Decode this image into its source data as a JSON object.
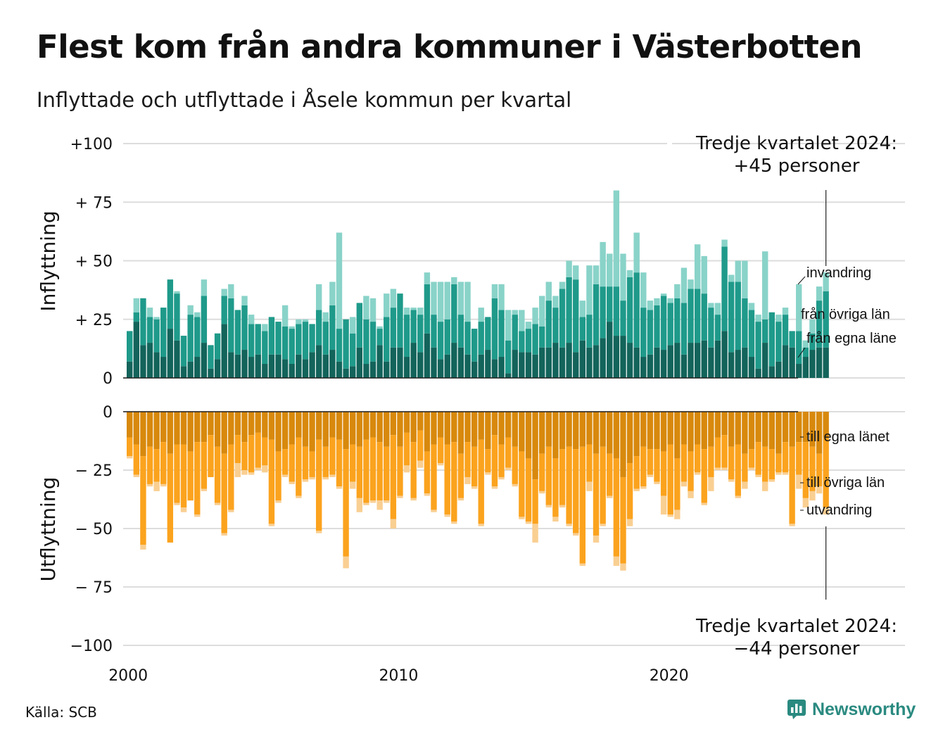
{
  "title": "Flest kom från andra kommuner i Västerbotten",
  "subtitle": "Inflyttade och utflyttade i Åsele kommun per kvartal",
  "source": "Källa: SCB",
  "brand": "Newsworthy",
  "colors": {
    "in_egna": "#13645b",
    "in_ovriga": "#1f9a8a",
    "in_invandring": "#89d3c9",
    "out_egna": "#d8890d",
    "out_ovriga": "#fba31e",
    "out_utvandring": "#f9cf92",
    "grid": "#dddddd",
    "axis": "#222222",
    "brand": "#2a8a80"
  },
  "annotations": {
    "top": [
      "Tredje kvartalet 2024:",
      "+45 personer"
    ],
    "bottom": [
      "Tredje kvartalet 2024:",
      "−44 personer"
    ]
  },
  "chart_data": {
    "type": "bar",
    "stacked": true,
    "x_start": "2000 Q1",
    "x_end": "2024 Q3",
    "x_ticks": [
      "2000",
      "2010",
      "2020"
    ],
    "grid": true,
    "panels": [
      {
        "ylabel": "Inflyttning",
        "ylim": [
          0,
          100
        ],
        "y_ticks": [
          "0",
          "+ 25",
          "+ 50",
          "+ 75",
          "+100"
        ],
        "series": [
          {
            "name": "från egna läne",
            "values": [
              7,
              24,
              14,
              15,
              11,
              9,
              21,
              16,
              5,
              7,
              9,
              15,
              4,
              8,
              23,
              11,
              10,
              12,
              9,
              10,
              6,
              10,
              10,
              8,
              6,
              10,
              8,
              11,
              14,
              10,
              12,
              7,
              4,
              5,
              13,
              6,
              7,
              14,
              7,
              13,
              13,
              9,
              15,
              11,
              19,
              13,
              8,
              10,
              15,
              13,
              10,
              7,
              10,
              12,
              8,
              9,
              2,
              12,
              11,
              11,
              10,
              13,
              13,
              15,
              13,
              15,
              11,
              16,
              13,
              14,
              17,
              24,
              18,
              18,
              15,
              13,
              9,
              10,
              13,
              12,
              14,
              15,
              10,
              15,
              15,
              16,
              13,
              16,
              20,
              11,
              12,
              13,
              9,
              4,
              15,
              5,
              7,
              14,
              13,
              6,
              9,
              12,
              13,
              13
            ]
          },
          {
            "name": "från övriga län",
            "values": [
              13,
              4,
              20,
              11,
              14,
              21,
              21,
              20,
              13,
              20,
              17,
              20,
              10,
              11,
              12,
              23,
              19,
              19,
              14,
              13,
              14,
              16,
              14,
              14,
              15,
              13,
              16,
              12,
              15,
              14,
              19,
              14,
              21,
              14,
              19,
              19,
              17,
              7,
              19,
              17,
              23,
              18,
              14,
              16,
              21,
              14,
              16,
              15,
              25,
              14,
              14,
              14,
              14,
              14,
              26,
              20,
              14,
              15,
              9,
              10,
              13,
              9,
              20,
              15,
              25,
              28,
              31,
              10,
              14,
              26,
              22,
              15,
              21,
              15,
              28,
              32,
              21,
              19,
              18,
              23,
              18,
              19,
              22,
              23,
              23,
              20,
              17,
              11,
              36,
              30,
              29,
              21,
              20,
              20,
              10,
              23,
              17,
              13,
              7,
              14,
              4,
              7,
              20,
              24
            ]
          },
          {
            "name": "invandring",
            "values": [
              0,
              6,
              0,
              4,
              1,
              0,
              0,
              1,
              0,
              4,
              2,
              7,
              0,
              0,
              3,
              6,
              0,
              4,
              4,
              0,
              3,
              0,
              0,
              9,
              1,
              2,
              1,
              0,
              11,
              4,
              10,
              41,
              0,
              7,
              0,
              10,
              10,
              1,
              10,
              8,
              0,
              3,
              1,
              3,
              5,
              14,
              17,
              16,
              3,
              14,
              17,
              0,
              6,
              0,
              6,
              11,
              13,
              2,
              9,
              3,
              7,
              13,
              8,
              5,
              3,
              7,
              6,
              7,
              21,
              8,
              19,
              14,
              41,
              20,
              3,
              17,
              15,
              4,
              3,
              1,
              2,
              6,
              15,
              4,
              19,
              16,
              2,
              5,
              3,
              3,
              9,
              16,
              3,
              3,
              29,
              0,
              3,
              3,
              0,
              20,
              3,
              6,
              6,
              8
            ]
          }
        ]
      },
      {
        "ylabel": "Utflyttning",
        "ylim": [
          -100,
          0
        ],
        "y_ticks": [
          "−100",
          "− 75",
          "− 50",
          "− 25",
          "0"
        ],
        "series": [
          {
            "name": "till egna länet",
            "values": [
              -11,
              -14,
              -19,
              -15,
              -16,
              -13,
              -18,
              -14,
              -14,
              -17,
              -13,
              -13,
              -10,
              -15,
              -18,
              -14,
              -10,
              -13,
              -10,
              -9,
              -11,
              -12,
              -17,
              -16,
              -14,
              -11,
              -15,
              -17,
              -12,
              -15,
              -11,
              -12,
              -16,
              -14,
              -15,
              -12,
              -11,
              -13,
              -15,
              -10,
              -15,
              -9,
              -13,
              -8,
              -17,
              -14,
              -11,
              -14,
              -13,
              -18,
              -13,
              -15,
              -12,
              -16,
              -10,
              -14,
              -11,
              -15,
              -17,
              -20,
              -29,
              -18,
              -15,
              -20,
              -16,
              -15,
              -16,
              -15,
              -14,
              -18,
              -15,
              -18,
              -20,
              -28,
              -22,
              -19,
              -15,
              -16,
              -16,
              -17,
              -14,
              -20,
              -14,
              -17,
              -14,
              -16,
              -15,
              -11,
              -10,
              -15,
              -14,
              -18,
              -16,
              -13,
              -15,
              -16,
              -18,
              -13,
              -15,
              -13,
              -13,
              -15,
              -18,
              -11
            ]
          },
          {
            "name": "till övriga län",
            "values": [
              -8,
              -13,
              -38,
              -16,
              -14,
              -18,
              -38,
              -25,
              -27,
              -21,
              -31,
              -20,
              -18,
              -24,
              -34,
              -28,
              -12,
              -12,
              -16,
              -15,
              -12,
              -36,
              -21,
              -11,
              -16,
              -25,
              -14,
              -11,
              -39,
              -13,
              -16,
              -20,
              -46,
              -16,
              -22,
              -27,
              -27,
              -25,
              -23,
              -36,
              -21,
              -14,
              -24,
              -13,
              -18,
              -28,
              -11,
              -30,
              -34,
              -19,
              -15,
              -17,
              -36,
              -10,
              -22,
              -14,
              -13,
              -16,
              -28,
              -27,
              -19,
              -16,
              -25,
              -25,
              -24,
              -33,
              -36,
              -50,
              -16,
              -35,
              -33,
              -18,
              -42,
              -37,
              -24,
              -14,
              -17,
              -11,
              -14,
              -19,
              -30,
              -22,
              -16,
              -17,
              -12,
              -23,
              -13,
              -13,
              -14,
              -14,
              -22,
              -12,
              -8,
              -14,
              -15,
              -13,
              -8,
              -13,
              -33,
              -14,
              -24,
              -19,
              -14,
              -30
            ]
          },
          {
            "name": "utvandring",
            "values": [
              -1,
              -1,
              -2,
              -1,
              -4,
              -1,
              0,
              -1,
              -2,
              0,
              -1,
              -1,
              0,
              -1,
              -1,
              -1,
              -6,
              -2,
              -1,
              -1,
              -3,
              -1,
              -1,
              -1,
              -1,
              -1,
              -1,
              -1,
              -1,
              -1,
              -1,
              -1,
              -5,
              -3,
              -6,
              -1,
              -1,
              -4,
              -1,
              -4,
              -1,
              -3,
              -1,
              -3,
              -1,
              -1,
              -1,
              -1,
              -1,
              -1,
              -3,
              -1,
              -1,
              -1,
              -1,
              -1,
              -1,
              -1,
              -1,
              -1,
              -8,
              -1,
              -1,
              -2,
              -1,
              -1,
              -1,
              -1,
              -4,
              -3,
              -1,
              -1,
              -4,
              -3,
              -3,
              -1,
              -1,
              -1,
              -1,
              -8,
              -1,
              -4,
              -2,
              -3,
              -1,
              -1,
              -6,
              -1,
              -1,
              -1,
              -1,
              -3,
              -1,
              -1,
              -4,
              -1,
              -1,
              -1,
              -1,
              -6,
              -4,
              -4,
              -3,
              -3
            ]
          }
        ]
      }
    ],
    "legend": {
      "top": [
        "invandring",
        "från övriga län",
        "från egna läne"
      ],
      "bottom": [
        "till egna länet",
        "till övriga län",
        "utvandring"
      ]
    }
  }
}
